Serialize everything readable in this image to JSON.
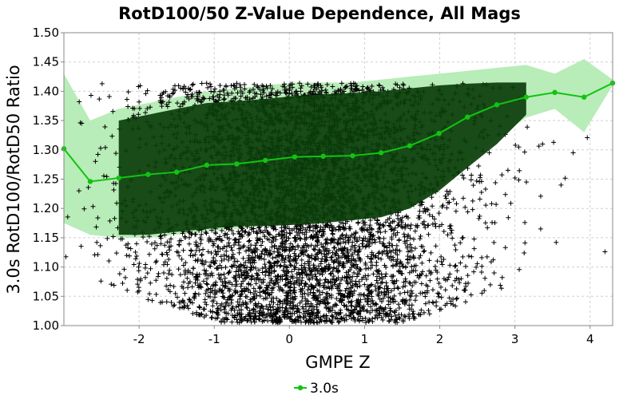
{
  "chart_data": {
    "type": "scatter",
    "title": "RotD100/50 Z-Value Dependence, All Mags",
    "xlabel": "GMPE Z",
    "ylabel": "3.0s RotD100/RotD50 Ratio",
    "xlim": [
      -3.0,
      4.3
    ],
    "ylim": [
      1.0,
      1.5
    ],
    "xticks": [
      "-2",
      "-1",
      "0",
      "1",
      "2",
      "3",
      "4"
    ],
    "yticks": [
      "1.00",
      "1.05",
      "1.10",
      "1.15",
      "1.20",
      "1.25",
      "1.30",
      "1.35",
      "1.40",
      "1.45",
      "1.50"
    ],
    "grid": true,
    "legend_position": "bottom-center",
    "colors": {
      "line": "#12c312",
      "outer_band": "#b8ecb8",
      "inner_band": "#0a3d0a",
      "scatter": "#000000"
    },
    "series": [
      {
        "name": "3.0s",
        "x": [
          -3.0,
          -2.65,
          -2.27,
          -1.88,
          -1.5,
          -1.1,
          -0.7,
          -0.32,
          0.07,
          0.45,
          0.84,
          1.22,
          1.6,
          1.99,
          2.37,
          2.76,
          3.15,
          3.53,
          3.92,
          4.3
        ],
        "y": [
          1.302,
          1.246,
          1.252,
          1.258,
          1.262,
          1.274,
          1.276,
          1.282,
          1.288,
          1.289,
          1.29,
          1.295,
          1.307,
          1.328,
          1.356,
          1.377,
          1.39,
          1.398,
          1.39,
          1.414
        ]
      }
    ],
    "outer_band": {
      "x": [
        -3.0,
        -2.65,
        -2.27,
        -1.88,
        -1.5,
        -1.1,
        -0.7,
        -0.32,
        0.07,
        0.45,
        0.84,
        1.22,
        1.6,
        1.99,
        2.37,
        2.76,
        3.15,
        3.53,
        3.92,
        4.3
      ],
      "upper": [
        1.43,
        1.35,
        1.37,
        1.38,
        1.39,
        1.4,
        1.405,
        1.41,
        1.415,
        1.415,
        1.415,
        1.42,
        1.425,
        1.43,
        1.435,
        1.44,
        1.445,
        1.43,
        1.455,
        1.42
      ],
      "lower": [
        1.175,
        1.155,
        1.15,
        1.15,
        1.155,
        1.16,
        1.165,
        1.17,
        1.175,
        1.18,
        1.18,
        1.185,
        1.2,
        1.235,
        1.275,
        1.32,
        1.355,
        1.37,
        1.33,
        1.41
      ]
    },
    "inner_band": {
      "x": [
        -2.27,
        -1.88,
        -1.5,
        -1.1,
        -0.7,
        -0.32,
        0.07,
        0.45,
        0.84,
        1.22,
        1.6,
        1.99,
        2.37,
        2.76,
        3.15
      ],
      "upper": [
        1.35,
        1.36,
        1.37,
        1.38,
        1.383,
        1.387,
        1.392,
        1.395,
        1.397,
        1.4,
        1.405,
        1.41,
        1.413,
        1.415,
        1.415
      ],
      "lower": [
        1.155,
        1.155,
        1.16,
        1.165,
        1.17,
        1.17,
        1.172,
        1.175,
        1.18,
        1.185,
        1.2,
        1.23,
        1.27,
        1.31,
        1.36
      ]
    },
    "scatter": {
      "description_only": false,
      "z_mean": 0.2,
      "z_spread": 1.05,
      "ratio_min": 1.005,
      "ratio_max": 1.414,
      "count": 5200
    }
  },
  "legend": {
    "items": [
      {
        "label": "3.0s"
      }
    ]
  }
}
